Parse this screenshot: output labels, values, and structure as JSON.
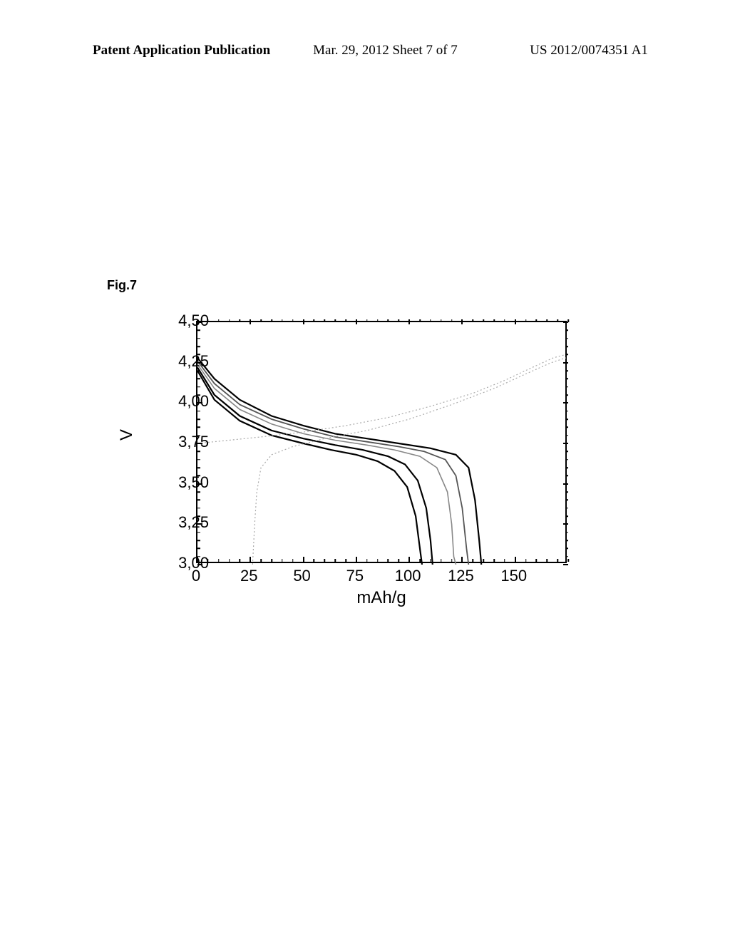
{
  "header": {
    "left": "Patent Application Publication",
    "center": "Mar. 29, 2012  Sheet 7 of 7",
    "right": "US 2012/0074351 A1"
  },
  "figure_label": "Fig.7",
  "chart": {
    "type": "line",
    "xlabel": "mAh/g",
    "ylabel": "V",
    "xlim": [
      0,
      175
    ],
    "ylim": [
      3.0,
      4.5
    ],
    "xticks": [
      0,
      25,
      50,
      75,
      100,
      125,
      150
    ],
    "xtick_labels": [
      "0",
      "25",
      "50",
      "75",
      "100",
      "125",
      "150"
    ],
    "yticks": [
      3.0,
      3.25,
      3.5,
      3.75,
      4.0,
      4.25,
      4.5
    ],
    "ytick_labels": [
      "3,00",
      "3,25",
      "3,50",
      "3,75",
      "4,00",
      "4,25",
      "4,50"
    ],
    "x_minor_step": 5,
    "y_minor_step": 0.05,
    "background_color": "#ffffff",
    "axis_color": "#000000",
    "series": [
      {
        "name": "discharge-1",
        "color": "#000000",
        "width": 2.2,
        "dash": "none",
        "points": [
          [
            0,
            4.28
          ],
          [
            8,
            4.15
          ],
          [
            20,
            4.02
          ],
          [
            35,
            3.92
          ],
          [
            50,
            3.86
          ],
          [
            65,
            3.81
          ],
          [
            80,
            3.78
          ],
          [
            95,
            3.75
          ],
          [
            110,
            3.72
          ],
          [
            122,
            3.68
          ],
          [
            128,
            3.6
          ],
          [
            131,
            3.4
          ],
          [
            133,
            3.15
          ],
          [
            134,
            3.0
          ]
        ]
      },
      {
        "name": "discharge-2",
        "color": "#555555",
        "width": 1.8,
        "dash": "none",
        "points": [
          [
            0,
            4.26
          ],
          [
            8,
            4.12
          ],
          [
            20,
            3.99
          ],
          [
            35,
            3.9
          ],
          [
            50,
            3.84
          ],
          [
            65,
            3.79
          ],
          [
            80,
            3.76
          ],
          [
            95,
            3.73
          ],
          [
            107,
            3.7
          ],
          [
            117,
            3.65
          ],
          [
            122,
            3.55
          ],
          [
            125,
            3.35
          ],
          [
            127,
            3.1
          ],
          [
            128,
            3.0
          ]
        ]
      },
      {
        "name": "discharge-3",
        "color": "#888888",
        "width": 1.6,
        "dash": "none",
        "points": [
          [
            0,
            4.24
          ],
          [
            8,
            4.09
          ],
          [
            20,
            3.96
          ],
          [
            35,
            3.87
          ],
          [
            50,
            3.81
          ],
          [
            65,
            3.77
          ],
          [
            80,
            3.74
          ],
          [
            93,
            3.71
          ],
          [
            105,
            3.67
          ],
          [
            113,
            3.6
          ],
          [
            118,
            3.45
          ],
          [
            120,
            3.25
          ],
          [
            121,
            3.05
          ],
          [
            122,
            3.0
          ]
        ]
      },
      {
        "name": "discharge-4",
        "color": "#000000",
        "width": 2.2,
        "dash": "none",
        "points": [
          [
            0,
            4.22
          ],
          [
            8,
            4.05
          ],
          [
            20,
            3.92
          ],
          [
            35,
            3.83
          ],
          [
            50,
            3.78
          ],
          [
            65,
            3.74
          ],
          [
            78,
            3.71
          ],
          [
            90,
            3.67
          ],
          [
            98,
            3.62
          ],
          [
            104,
            3.52
          ],
          [
            108,
            3.35
          ],
          [
            110,
            3.15
          ],
          [
            111,
            3.0
          ]
        ]
      },
      {
        "name": "discharge-5",
        "color": "#000000",
        "width": 2.2,
        "dash": "none",
        "points": [
          [
            0,
            4.2
          ],
          [
            8,
            4.02
          ],
          [
            20,
            3.89
          ],
          [
            35,
            3.8
          ],
          [
            50,
            3.75
          ],
          [
            63,
            3.71
          ],
          [
            75,
            3.68
          ],
          [
            85,
            3.64
          ],
          [
            93,
            3.58
          ],
          [
            99,
            3.48
          ],
          [
            103,
            3.3
          ],
          [
            105,
            3.1
          ],
          [
            106,
            3.0
          ]
        ]
      },
      {
        "name": "charge-1",
        "color": "#aaaaaa",
        "width": 1.2,
        "dash": "2,3",
        "points": [
          [
            0,
            3.75
          ],
          [
            15,
            3.77
          ],
          [
            30,
            3.79
          ],
          [
            50,
            3.82
          ],
          [
            70,
            3.86
          ],
          [
            90,
            3.91
          ],
          [
            110,
            3.98
          ],
          [
            130,
            4.06
          ],
          [
            145,
            4.14
          ],
          [
            158,
            4.22
          ],
          [
            168,
            4.28
          ],
          [
            174,
            4.3
          ]
        ]
      },
      {
        "name": "charge-2",
        "color": "#aaaaaa",
        "width": 1.2,
        "dash": "2,3",
        "points": [
          [
            26,
            3.0
          ],
          [
            27,
            3.25
          ],
          [
            28,
            3.45
          ],
          [
            30,
            3.6
          ],
          [
            35,
            3.68
          ],
          [
            45,
            3.73
          ],
          [
            60,
            3.78
          ],
          [
            80,
            3.83
          ],
          [
            100,
            3.9
          ],
          [
            120,
            3.99
          ],
          [
            140,
            4.09
          ],
          [
            155,
            4.18
          ],
          [
            167,
            4.25
          ],
          [
            174,
            4.28
          ]
        ]
      }
    ]
  }
}
